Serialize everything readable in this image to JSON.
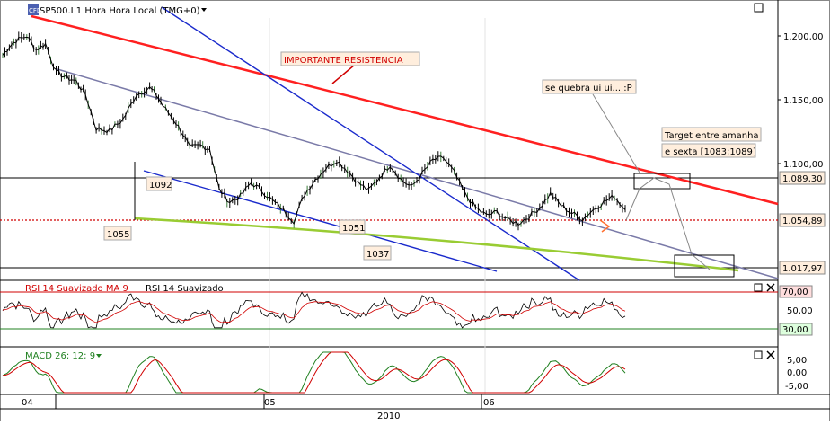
{
  "header": {
    "logo_text": "CFD",
    "instrument": "SP500.I 1 Hora Hora Local (TMG+0)",
    "dropdown_icon": "caret-down-icon",
    "window_icon": "maximize-icon"
  },
  "price_panel": {
    "y_ticks": [
      "1.200,00",
      "1.150,00",
      "1.100,00"
    ],
    "price_tags": [
      {
        "text": "1.089,30",
        "color": "#ffeedd"
      },
      {
        "text": "1.054,89",
        "color": "#ffeedd"
      },
      {
        "text": "1.017,97",
        "color": "#ffeedd"
      }
    ],
    "annotations": {
      "resistance": "IMPORTANTE RESISTENCIA",
      "break_note": "se quebra ui ui... :P",
      "target_line1": "Target entre amanha",
      "target_line2": "e sexta [1083;1089]",
      "level_1092": "1092",
      "level_1055": "1055",
      "level_1051": "1051",
      "level_1037": "1037"
    },
    "colors": {
      "resistance": "#ff2020",
      "support": "#99cc33",
      "channel": "#1a2acc",
      "mid": "#7070a0",
      "price": "#000000"
    }
  },
  "rsi_panel": {
    "title_a": "RSI 14 Suavizado MA 9",
    "title_b": "RSI 14 Suavizado",
    "y_ticks": [
      "70,00",
      "50,00",
      "30,00"
    ],
    "close_icon": "close-icon",
    "maximize_icon": "maximize-icon"
  },
  "macd_panel": {
    "title": "MACD 26; 12; 9",
    "y_ticks": [
      "5,00",
      "0,00",
      "-5,00"
    ],
    "close_icon": "close-icon",
    "maximize_icon": "maximize-icon"
  },
  "x_axis": {
    "month_labels": [
      "04",
      "05",
      "06"
    ],
    "year_label": "2010"
  },
  "chart_data": {
    "type": "line",
    "title": "SP500.I 1 Hora Hora Local (TMG+0)",
    "xlabel": "2010",
    "ylabel": "",
    "x_ticks": [
      "04",
      "05",
      "06"
    ],
    "ylim": [
      1005,
      1228
    ],
    "series": [
      {
        "x_index": [
          0,
          5,
          10,
          18,
          25,
          32,
          40,
          48,
          55,
          62,
          70,
          80,
          90,
          100,
          110,
          115,
          120,
          128,
          135,
          140,
          148,
          155,
          162,
          170,
          178,
          186,
          194,
          202,
          210,
          218,
          226,
          234,
          242,
          250,
          258,
          266,
          274,
          282,
          290,
          298,
          306,
          314,
          322,
          330,
          338,
          346,
          354,
          362,
          370,
          378,
          386,
          394,
          402,
          410,
          418,
          426,
          434,
          442,
          450,
          458,
          466
        ],
        "values": [
          1195,
          1203,
          1208,
          1212,
          1200,
          1205,
          1180,
          1175,
          1172,
          1160,
          1130,
          1128,
          1138,
          1160,
          1166,
          1160,
          1150,
          1138,
          1125,
          1113,
          1115,
          1112,
          1076,
          1065,
          1070,
          1082,
          1075,
          1066,
          1058,
          1048,
          1072,
          1085,
          1095,
          1102,
          1093,
          1082,
          1075,
          1087,
          1098,
          1085,
          1078,
          1090,
          1102,
          1104,
          1091,
          1072,
          1060,
          1053,
          1056,
          1049,
          1046,
          1052,
          1060,
          1072,
          1062,
          1055,
          1050,
          1058,
          1065,
          1070,
          1058
        ]
      }
    ]
  }
}
